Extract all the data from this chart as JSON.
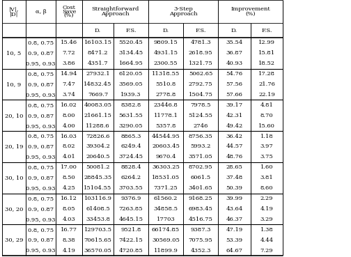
{
  "rows": [
    [
      "10, 5",
      "0.8, 0.75",
      "15.46",
      "16103.15",
      "5520.45",
      "9809.15",
      "4781.3",
      "35.54",
      "12.99"
    ],
    [
      "",
      "0.9, 0.87",
      "7.72",
      "8471.2",
      "3134.45",
      "4931.15",
      "2618.95",
      "36.87",
      "15.81"
    ],
    [
      "",
      "0.95, 0.93",
      "3.86",
      "4351.7",
      "1664.95",
      "2300.55",
      "1321.75",
      "40.93",
      "18.52"
    ],
    [
      "10, 9",
      "0.8, 0.75",
      "14.94",
      "27932.1",
      "6120.05",
      "11318.55",
      "5062.65",
      "54.76",
      "17.28"
    ],
    [
      "",
      "0.9, 0.87",
      "7.47",
      "14832.45",
      "3569.05",
      "5510.8",
      "2792.75",
      "57.56",
      "21.76"
    ],
    [
      "",
      "0.95, 0.93",
      "3.74",
      "7669.7",
      "1939.3",
      "2778.8",
      "1504.75",
      "57.66",
      "22.19"
    ],
    [
      "20, 10",
      "0.8, 0.75",
      "16.02",
      "40083.05",
      "8382.8",
      "23446.8",
      "7978.5",
      "39.17",
      "4.81"
    ],
    [
      "",
      "0.9, 0.87",
      "8.00",
      "21661.15",
      "5631.55",
      "11778.1",
      "5124.55",
      "42.31",
      "8.70"
    ],
    [
      "",
      "0.95, 0.93",
      "4.00",
      "11288.6",
      "3290.05",
      "5357.8",
      "2746",
      "49.42",
      "15.60"
    ],
    [
      "20, 19",
      "0.8, 0.75",
      "16.03",
      "72826.6",
      "8865.3",
      "44544.95",
      "8756.35",
      "36.42",
      "1.18"
    ],
    [
      "",
      "0.9, 0.87",
      "8.02",
      "39304.2",
      "6249.4",
      "20603.45",
      "5993.2",
      "44.57",
      "3.97"
    ],
    [
      "",
      "0.95, 0.93",
      "4.01",
      "20640.5",
      "3724.45",
      "9670.4",
      "3571.05",
      "48.76",
      "3.75"
    ],
    [
      "30, 10",
      "0.8, 0.75",
      "17.00",
      "50081.2",
      "8828.4",
      "36303.25",
      "8702.95",
      "28.65",
      "1.60"
    ],
    [
      "",
      "0.9, 0.87",
      "8.50",
      "28845.35",
      "6264.2",
      "18531.05",
      "6061.5",
      "37.48",
      "3.81"
    ],
    [
      "",
      "0.95, 0.93",
      "4.25",
      "15104.55",
      "3703.55",
      "7371.25",
      "3401.65",
      "50.39",
      "8.60"
    ],
    [
      "30, 20",
      "0.8, 0.75",
      "16.12",
      "103116.9",
      "9376.9",
      "61560.2",
      "9168.25",
      "39.99",
      "2.29"
    ],
    [
      "",
      "0.9, 0.87",
      "8.05",
      "61408.5",
      "7263.85",
      "34858.5",
      "6983.45",
      "43.64",
      "4.19"
    ],
    [
      "",
      "0.95, 0.93",
      "4.03",
      "33453.8",
      "4645.15",
      "17703",
      "4516.75",
      "46.37",
      "3.29"
    ],
    [
      "30, 29",
      "0.8, 0.75",
      "16.77",
      "129703.5",
      "9521.8",
      "66174.85",
      "9387.3",
      "47.19",
      "1.38"
    ],
    [
      "",
      "0.9, 0.87",
      "8.38",
      "70615.65",
      "7422.15",
      "30569.05",
      "7075.95",
      "53.39",
      "4.44"
    ],
    [
      "",
      "0.95, 0.93",
      "4.19",
      "36570.05",
      "4720.85",
      "11899.9",
      "4352.3",
      "64.67",
      "7.29"
    ]
  ],
  "group_labels": [
    "10, 5",
    "10, 9",
    "20, 10",
    "20, 19",
    "30, 10",
    "30, 20",
    "30, 29"
  ],
  "group_starts": [
    0,
    3,
    6,
    9,
    12,
    15,
    18
  ],
  "bg_color": "#ffffff"
}
